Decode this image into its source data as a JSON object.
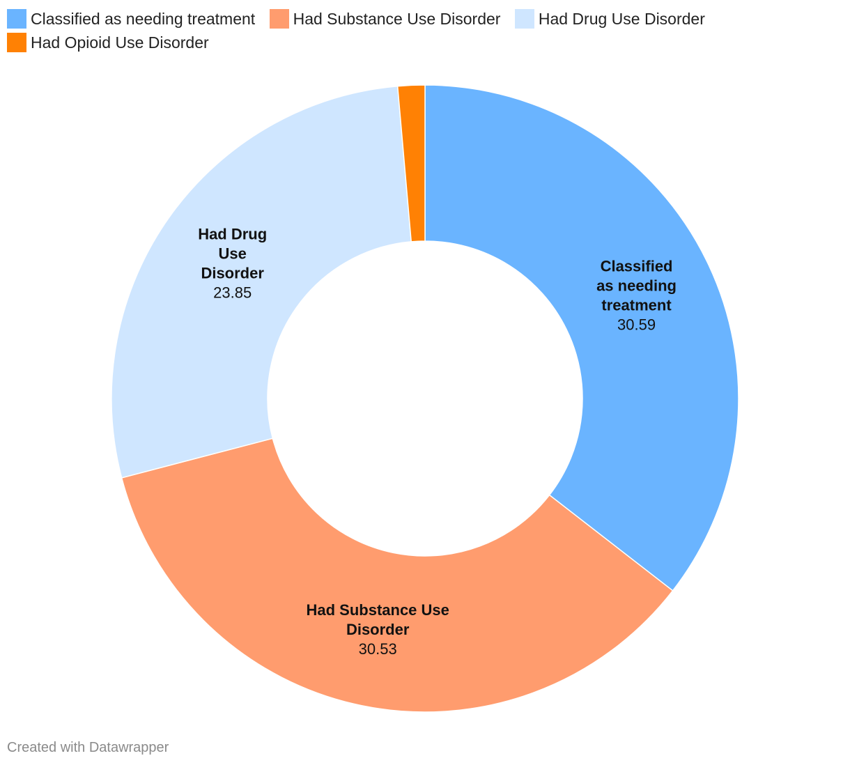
{
  "chart_data": {
    "type": "pie",
    "subtype": "donut",
    "categories": [
      "Classified as needing treatment",
      "Had Substance Use Disorder",
      "Had Drug Use Disorder",
      "Had Opioid Use Disorder"
    ],
    "values": [
      30.59,
      30.53,
      23.85,
      1.2
    ],
    "value_labels": [
      "30.59",
      "30.53",
      "23.85",
      ""
    ],
    "slice_label_lines": [
      [
        "Classified",
        "as needing",
        "treatment"
      ],
      [
        "Had Substance Use",
        "Disorder"
      ],
      [
        "Had Drug",
        "Use",
        "Disorder"
      ],
      []
    ],
    "colors": [
      "#6ab4ff",
      "#ff9c6e",
      "#cfe6ff",
      "#ff8104"
    ],
    "legend_position": "top",
    "start_angle_deg": 0,
    "direction": "clockwise"
  },
  "legend": {
    "items": [
      {
        "label": "Classified as needing treatment",
        "color": "#6ab4ff"
      },
      {
        "label": "Had Substance Use Disorder",
        "color": "#ff9c6e"
      },
      {
        "label": "Had Drug Use Disorder",
        "color": "#cfe6ff"
      },
      {
        "label": "Had Opioid Use Disorder",
        "color": "#ff8104"
      }
    ]
  },
  "footer": {
    "credit": "Created with Datawrapper"
  }
}
